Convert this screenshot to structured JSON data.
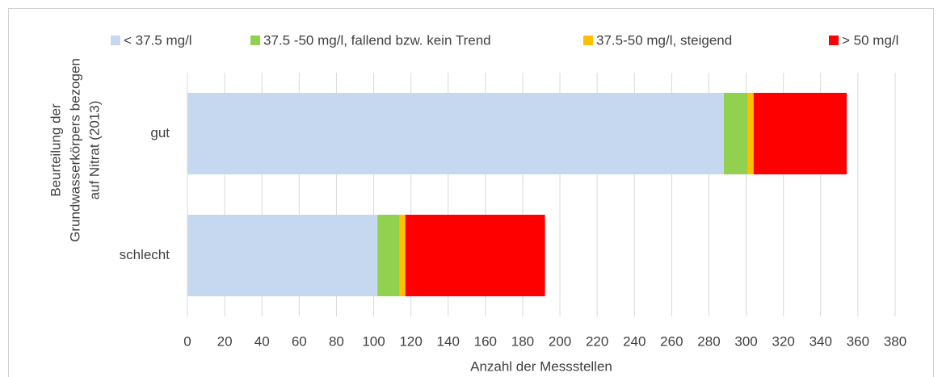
{
  "chart_data": {
    "type": "stacked-bar-horizontal",
    "ylabel": [
      "Beurteilung der",
      "Grundwasserkörpers bezogen",
      "auf Nitrat (2013)"
    ],
    "xlabel": "Anzahl der Messstellen",
    "categories": [
      "gut",
      "schlecht"
    ],
    "series": [
      {
        "name": "< 37.5 mg/l",
        "color": "#c6d8f0",
        "values": [
          288,
          102
        ]
      },
      {
        "name": "37.5 -50 mg/l, fallend bzw. kein Trend",
        "color": "#92d050",
        "values": [
          13,
          12
        ]
      },
      {
        "name": "37.5-50 mg/l, steigend",
        "color": "#ffc000",
        "values": [
          3,
          3
        ]
      },
      {
        "name": "> 50 mg/l",
        "color": "#ff0000",
        "values": [
          50,
          75
        ]
      }
    ],
    "xlim": [
      0,
      380
    ],
    "xticks": [
      0,
      20,
      40,
      60,
      80,
      100,
      120,
      140,
      160,
      180,
      200,
      220,
      240,
      260,
      280,
      300,
      320,
      340,
      360,
      380
    ],
    "grid": true,
    "legend": "top"
  }
}
